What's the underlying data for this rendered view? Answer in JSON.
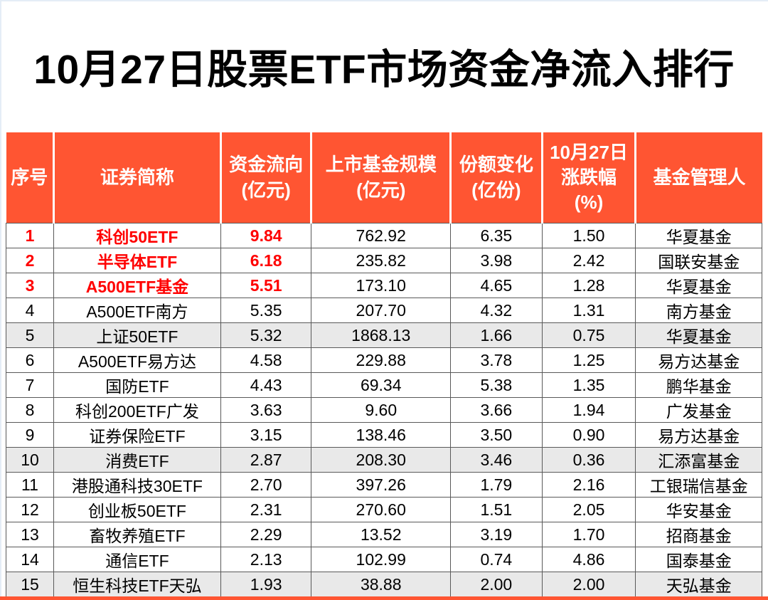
{
  "title": "10月27日股票ETF市场资金净流入排行",
  "colors": {
    "header_bg": "#FF5532",
    "header_text": "#FFFFFF",
    "highlight_text": "#FF0000",
    "shaded_row_bg": "#E9E9E9",
    "border": "#595959",
    "body_text": "#000000"
  },
  "chart_data": {
    "type": "table",
    "title": "10月27日股票ETF市场资金净流入排行",
    "columns": [
      "序号",
      "证券简称",
      "资金流向\n(亿元)",
      "上市基金规模\n(亿元)",
      "份额变化\n(亿份)",
      "10月27日\n涨跌幅\n(%)",
      "基金管理人"
    ],
    "field_order": [
      "rank",
      "name",
      "flow",
      "size",
      "share_change",
      "change_pct",
      "manager"
    ],
    "rows": [
      {
        "rank": "1",
        "name": "科创50ETF",
        "flow": "9.84",
        "size": "762.92",
        "share_change": "6.35",
        "change_pct": "1.50",
        "manager": "华夏基金",
        "highlight": true,
        "shaded": false
      },
      {
        "rank": "2",
        "name": "半导体ETF",
        "flow": "6.18",
        "size": "235.82",
        "share_change": "3.98",
        "change_pct": "2.42",
        "manager": "国联安基金",
        "highlight": true,
        "shaded": false
      },
      {
        "rank": "3",
        "name": "A500ETF基金",
        "flow": "5.51",
        "size": "173.10",
        "share_change": "4.65",
        "change_pct": "1.28",
        "manager": "华夏基金",
        "highlight": true,
        "shaded": false
      },
      {
        "rank": "4",
        "name": "A500ETF南方",
        "flow": "5.35",
        "size": "207.70",
        "share_change": "4.32",
        "change_pct": "1.31",
        "manager": "南方基金",
        "highlight": false,
        "shaded": false
      },
      {
        "rank": "5",
        "name": "上证50ETF",
        "flow": "5.32",
        "size": "1868.13",
        "share_change": "1.66",
        "change_pct": "0.75",
        "manager": "华夏基金",
        "highlight": false,
        "shaded": true
      },
      {
        "rank": "6",
        "name": "A500ETF易方达",
        "flow": "4.58",
        "size": "229.88",
        "share_change": "3.78",
        "change_pct": "1.25",
        "manager": "易方达基金",
        "highlight": false,
        "shaded": false
      },
      {
        "rank": "7",
        "name": "国防ETF",
        "flow": "4.43",
        "size": "69.34",
        "share_change": "5.38",
        "change_pct": "1.35",
        "manager": "鹏华基金",
        "highlight": false,
        "shaded": false
      },
      {
        "rank": "8",
        "name": "科创200ETF广发",
        "flow": "3.63",
        "size": "9.60",
        "share_change": "3.66",
        "change_pct": "1.94",
        "manager": "广发基金",
        "highlight": false,
        "shaded": false
      },
      {
        "rank": "9",
        "name": "证券保险ETF",
        "flow": "3.15",
        "size": "138.46",
        "share_change": "3.50",
        "change_pct": "0.90",
        "manager": "易方达基金",
        "highlight": false,
        "shaded": false
      },
      {
        "rank": "10",
        "name": "消费ETF",
        "flow": "2.87",
        "size": "208.30",
        "share_change": "3.46",
        "change_pct": "0.36",
        "manager": "汇添富基金",
        "highlight": false,
        "shaded": true
      },
      {
        "rank": "11",
        "name": "港股通科技30ETF",
        "flow": "2.70",
        "size": "397.26",
        "share_change": "1.79",
        "change_pct": "2.16",
        "manager": "工银瑞信基金",
        "highlight": false,
        "shaded": false
      },
      {
        "rank": "12",
        "name": "创业板50ETF",
        "flow": "2.31",
        "size": "270.60",
        "share_change": "1.51",
        "change_pct": "2.05",
        "manager": "华安基金",
        "highlight": false,
        "shaded": false
      },
      {
        "rank": "13",
        "name": "畜牧养殖ETF",
        "flow": "2.29",
        "size": "13.52",
        "share_change": "3.19",
        "change_pct": "1.70",
        "manager": "招商基金",
        "highlight": false,
        "shaded": false
      },
      {
        "rank": "14",
        "name": "通信ETF",
        "flow": "2.13",
        "size": "102.99",
        "share_change": "0.74",
        "change_pct": "4.86",
        "manager": "国泰基金",
        "highlight": false,
        "shaded": false
      },
      {
        "rank": "15",
        "name": "恒生科技ETF天弘",
        "flow": "1.93",
        "size": "38.88",
        "share_change": "2.00",
        "change_pct": "2.00",
        "manager": "天弘基金",
        "highlight": false,
        "shaded": true
      }
    ]
  }
}
